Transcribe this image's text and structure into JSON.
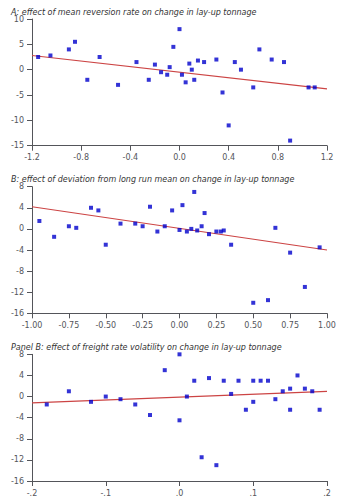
{
  "chart_data": [
    {
      "type": "scatter",
      "title": "A: effect of mean reversion rate on change in lay-up tonnage",
      "xlim": [
        -1.2,
        1.2
      ],
      "ylim": [
        -15,
        10
      ],
      "xticks": [
        -1.2,
        -0.8,
        -0.4,
        {
          "value": 0.0,
          "label": "0.0"
        },
        0.4,
        0.8,
        1.2
      ],
      "yticks": [
        -15,
        -10,
        -5,
        0,
        5,
        10
      ],
      "grid": false,
      "series": [
        {
          "type": "scatter",
          "color": "#0000cc",
          "marker": "square",
          "x": [
            -1.15,
            -1.05,
            -0.9,
            -0.85,
            -0.75,
            -0.65,
            -0.5,
            -0.35,
            -0.25,
            -0.2,
            -0.15,
            -0.1,
            -0.08,
            -0.05,
            0.0,
            0.02,
            0.05,
            0.08,
            0.1,
            0.12,
            0.15,
            0.2,
            0.3,
            0.35,
            0.4,
            0.45,
            0.5,
            0.6,
            0.65,
            0.75,
            0.85,
            0.9,
            1.05,
            1.1
          ],
          "values": [
            2.5,
            2.8,
            4.0,
            5.5,
            -2.0,
            2.5,
            -3.0,
            1.5,
            -2.0,
            1.0,
            -0.5,
            -1.0,
            0.5,
            4.5,
            8.0,
            -1.0,
            -2.5,
            1.2,
            0.0,
            -2.0,
            1.8,
            1.5,
            2.0,
            -4.5,
            -11.0,
            1.5,
            0.0,
            -3.5,
            4.0,
            2.0,
            1.5,
            -14.0,
            -3.5,
            -3.5
          ]
        },
        {
          "type": "line",
          "color": "#cc4444",
          "x": [
            -1.2,
            1.2
          ],
          "values": [
            2.8,
            -3.8
          ]
        }
      ]
    },
    {
      "type": "scatter",
      "title": "B: effect of deviation from long run mean on change in lay-up tonnage",
      "xlim": [
        -1.0,
        1.0
      ],
      "ylim": [
        -16,
        8
      ],
      "xticks": [
        {
          "value": -1.0,
          "label": "-1.00"
        },
        {
          "value": -0.75,
          "label": "-0.75"
        },
        {
          "value": -0.5,
          "label": "-0.50"
        },
        {
          "value": -0.25,
          "label": "-0.25"
        },
        {
          "value": 0.0,
          "label": "0.00"
        },
        {
          "value": 0.25,
          "label": "0.25"
        },
        {
          "value": 0.5,
          "label": "0.50"
        },
        {
          "value": 0.75,
          "label": "0.75"
        },
        {
          "value": 1.0,
          "label": "1.00"
        }
      ],
      "yticks": [
        -16,
        -12,
        -8,
        -4,
        0,
        4,
        8
      ],
      "grid": false,
      "series": [
        {
          "type": "scatter",
          "color": "#0000cc",
          "marker": "square",
          "x": [
            -0.95,
            -0.85,
            -0.75,
            -0.7,
            -0.6,
            -0.55,
            -0.5,
            -0.4,
            -0.3,
            -0.25,
            -0.2,
            -0.15,
            -0.1,
            -0.05,
            0.0,
            0.02,
            0.05,
            0.08,
            0.1,
            0.12,
            0.15,
            0.17,
            0.2,
            0.25,
            0.28,
            0.3,
            0.35,
            0.5,
            0.6,
            0.65,
            0.75,
            0.85,
            0.95
          ],
          "values": [
            1.5,
            -1.5,
            0.5,
            0.2,
            4.0,
            3.5,
            -3.0,
            1.0,
            1.0,
            0.5,
            4.2,
            -0.5,
            0.5,
            3.5,
            -0.2,
            4.5,
            -0.5,
            0.0,
            7.0,
            -0.3,
            0.5,
            3.0,
            -1.0,
            -0.5,
            -0.5,
            -0.3,
            -3.0,
            -14.0,
            -13.5,
            0.2,
            -4.5,
            -11.0,
            -3.5
          ]
        },
        {
          "type": "line",
          "color": "#cc4444",
          "x": [
            -1.0,
            1.0
          ],
          "values": [
            4.2,
            -4.0
          ]
        }
      ]
    },
    {
      "type": "scatter",
      "title": "Panel B: effect of freight rate volatility on change in lay-up tonnage",
      "xlim": [
        -0.2,
        0.2
      ],
      "ylim": [
        -16,
        8
      ],
      "xticks": [
        {
          "value": -0.2,
          "label": "-.2"
        },
        {
          "value": -0.1,
          "label": "-.1"
        },
        {
          "value": 0.0,
          "label": ".0"
        },
        {
          "value": 0.1,
          "label": ".1"
        },
        {
          "value": 0.2,
          "label": ".2"
        }
      ],
      "yticks": [
        -16,
        -12,
        -8,
        -4,
        0,
        4,
        8
      ],
      "grid": false,
      "series": [
        {
          "type": "scatter",
          "color": "#0000cc",
          "marker": "square",
          "x": [
            -0.18,
            -0.15,
            -0.12,
            -0.1,
            -0.08,
            -0.06,
            -0.04,
            -0.02,
            0.0,
            0.0,
            0.01,
            0.02,
            0.03,
            0.04,
            0.05,
            0.06,
            0.07,
            0.08,
            0.09,
            0.1,
            0.1,
            0.11,
            0.12,
            0.13,
            0.14,
            0.15,
            0.15,
            0.16,
            0.17,
            0.18,
            0.19
          ],
          "values": [
            -1.5,
            1.0,
            -1.0,
            0.0,
            -0.5,
            -1.5,
            -3.5,
            5.0,
            -4.5,
            8.0,
            0.0,
            3.0,
            -11.5,
            3.5,
            -13.0,
            3.0,
            0.5,
            3.0,
            -2.5,
            3.0,
            -1.0,
            3.0,
            3.0,
            -0.5,
            1.0,
            -2.5,
            1.5,
            4.0,
            1.5,
            1.0,
            -2.5
          ]
        },
        {
          "type": "line",
          "color": "#cc4444",
          "x": [
            -0.2,
            0.2
          ],
          "values": [
            -1.2,
            1.0
          ]
        }
      ]
    }
  ]
}
